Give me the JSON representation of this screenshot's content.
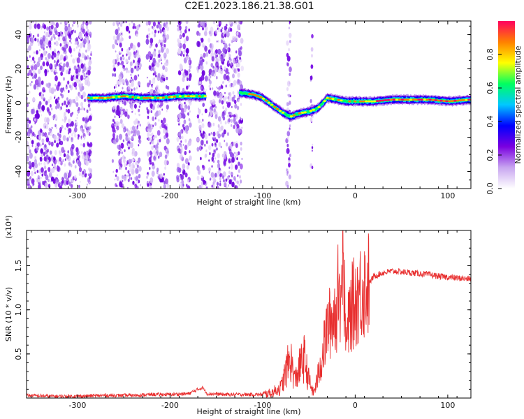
{
  "title": "C2E1.2023.186.21.38.G01",
  "chart_data": [
    {
      "type": "heatmap",
      "xlabel": "Height of straight line (km)",
      "ylabel": "Frequency (Hz)",
      "xlim": [
        -355,
        125
      ],
      "ylim": [
        -50,
        48
      ],
      "xticks": [
        -300,
        -200,
        -100,
        0,
        100
      ],
      "yticks": [
        -40,
        -20,
        0,
        20,
        40
      ],
      "colorbar": {
        "label": "Normalized spectral amplitude",
        "range": [
          0.0,
          1.0
        ],
        "ticks": [
          "0.0",
          "0.2",
          "0.4",
          "0.6",
          "0.8"
        ],
        "colors": [
          "#ffffff",
          "#c8a6f0",
          "#7a00e0",
          "#0000ff",
          "#00c8ff",
          "#00ff60",
          "#ffff00",
          "#ff8000",
          "#ff0060"
        ]
      },
      "noise_bands_km": [
        [
          -355,
          -285
        ],
        [
          -262,
          -232
        ],
        [
          -225,
          -202
        ],
        [
          -192,
          -178
        ],
        [
          -170,
          -160
        ],
        [
          -158,
          -122
        ],
        [
          -74,
          -70
        ],
        [
          -48,
          -46
        ]
      ],
      "ridge": {
        "x": [
          -288,
          -270,
          -250,
          -230,
          -210,
          -190,
          -170,
          -162,
          -125,
          -110,
          -100,
          -90,
          -80,
          -70,
          -60,
          -50,
          -40,
          -30,
          -20,
          -10,
          0,
          20,
          40,
          60,
          80,
          100,
          125
        ],
        "y": [
          3,
          3,
          4,
          3,
          3,
          4,
          4,
          4,
          6,
          5,
          3,
          -1,
          -5,
          -8,
          -6,
          -5,
          -3,
          3,
          2,
          1,
          1,
          1,
          2,
          2,
          2,
          1,
          2
        ]
      }
    },
    {
      "type": "line",
      "xlabel": "Height of straight line (km)",
      "ylabel": "SNR (10 * v/v)",
      "multiplier": "(x10⁴)",
      "xlim": [
        -355,
        125
      ],
      "ylim": [
        0.0,
        1.9
      ],
      "xticks": [
        -300,
        -200,
        -100,
        0,
        100
      ],
      "yticks": [
        "0.5",
        "1.0",
        "1.5"
      ],
      "color": "#e83030",
      "x": [
        -355,
        -330,
        -300,
        -270,
        -240,
        -220,
        -200,
        -180,
        -165,
        -160,
        -140,
        -120,
        -100,
        -90,
        -80,
        -75,
        -70,
        -65,
        -60,
        -55,
        -50,
        -45,
        -40,
        -35,
        -30,
        -25,
        -20,
        -15,
        -12,
        -10,
        -5,
        0,
        5,
        10,
        15,
        20,
        30,
        40,
        50,
        60,
        70,
        80,
        90,
        100,
        110,
        125
      ],
      "y": [
        0.03,
        0.02,
        0.02,
        0.03,
        0.03,
        0.04,
        0.04,
        0.05,
        0.12,
        0.05,
        0.04,
        0.04,
        0.04,
        0.06,
        0.12,
        0.3,
        0.45,
        0.2,
        0.35,
        0.45,
        0.2,
        0.05,
        0.25,
        0.5,
        0.8,
        0.9,
        1.0,
        1.2,
        1.3,
        0.6,
        1.0,
        1.1,
        1.2,
        1.25,
        1.3,
        1.38,
        1.42,
        1.44,
        1.43,
        1.42,
        1.41,
        1.4,
        1.38,
        1.37,
        1.36,
        1.35
      ]
    }
  ]
}
